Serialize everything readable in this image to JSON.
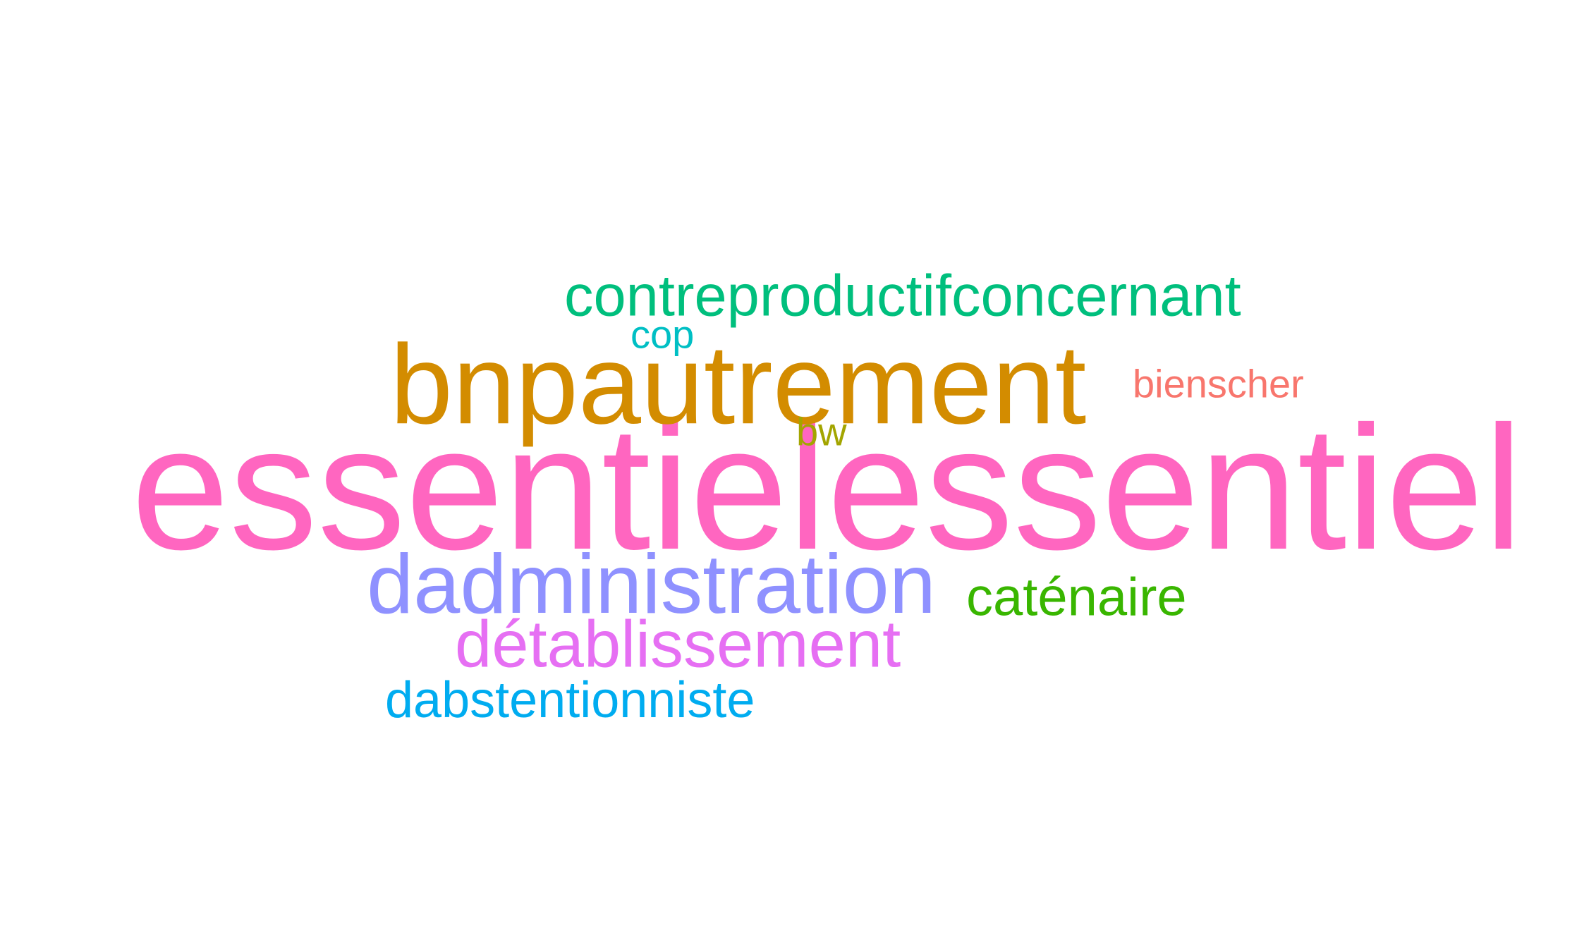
{
  "background_color": "#ffffff",
  "words": {
    "essentielessentiel": {
      "text": "essentielessentiel",
      "color": "#ff66c0"
    },
    "bnpautrement": {
      "text": "bnpautrement",
      "color": "#d38c00"
    },
    "contreproductifconcernant": {
      "text": "contreproductifconcernant",
      "color": "#00bf7d"
    },
    "dadministration": {
      "text": "dadministration",
      "color": "#8f91ff"
    },
    "detablissement": {
      "text": "détablissement",
      "color": "#e66ff3"
    },
    "dabstentionniste": {
      "text": "dabstentionniste",
      "color": "#00acf0"
    },
    "catenaire": {
      "text": "caténaire",
      "color": "#39b600"
    },
    "bienscher": {
      "text": "bienscher",
      "color": "#f8766d"
    },
    "cop": {
      "text": "cop",
      "color": "#00bfc4"
    },
    "bw": {
      "text": "bw",
      "color": "#a3a500"
    }
  }
}
